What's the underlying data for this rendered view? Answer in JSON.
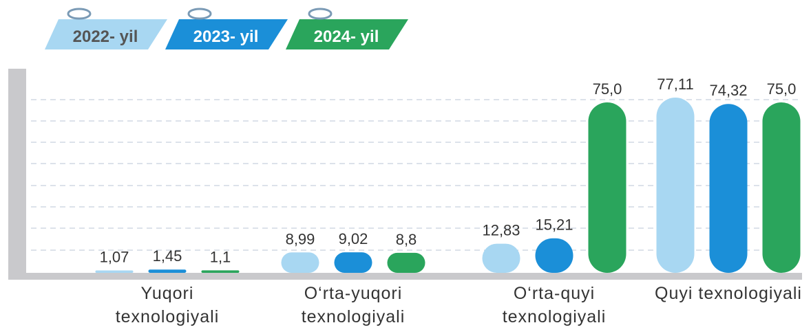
{
  "chart_data": {
    "type": "bar",
    "categories": [
      "Yuqori texnologiyali",
      "O‘rta-yuqori texnologiyali",
      "O‘rta-quyi texnologiyali",
      "Quyi texnologiyali"
    ],
    "series": [
      {
        "name": "2022- yil",
        "color": "#a8d7f2",
        "values": [
          1.07,
          8.99,
          12.83,
          77.11
        ],
        "value_labels": [
          "1,07",
          "8,99",
          "12,83",
          "77,11"
        ]
      },
      {
        "name": "2023- yil",
        "color": "#1b8fd8",
        "values": [
          1.45,
          9.02,
          15.21,
          74.32
        ],
        "value_labels": [
          "1,45",
          "9,02",
          "15,21",
          "74,32"
        ]
      },
      {
        "name": "2024- yil",
        "color": "#2aa55c",
        "values": [
          1.1,
          8.8,
          75.0,
          75.0
        ],
        "value_labels": [
          "1,1",
          "8,8",
          "75,0",
          "75,0"
        ]
      }
    ]
  }
}
